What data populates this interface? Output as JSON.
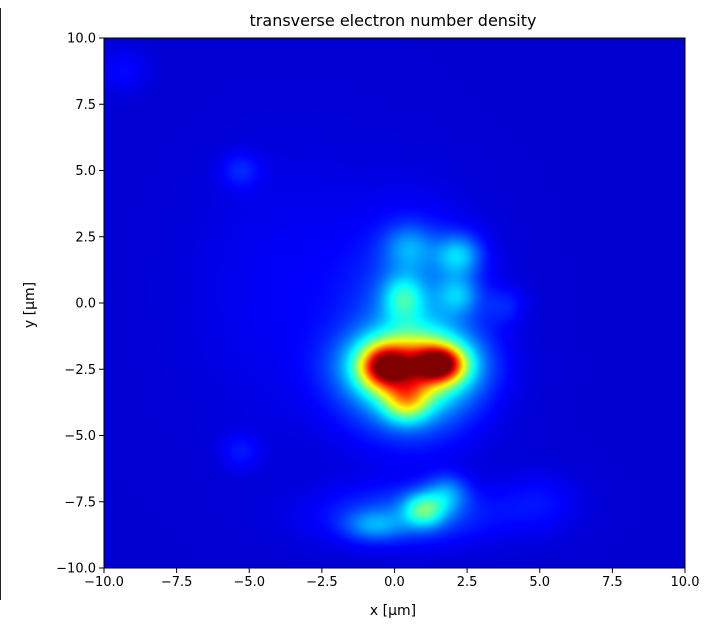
{
  "chart_data": {
    "type": "heatmap",
    "title": "transverse electron number density",
    "xlabel": "x [µm]",
    "ylabel": "y [µm]",
    "xlim": [
      -10.0,
      10.0
    ],
    "ylim": [
      -10.0,
      10.0
    ],
    "x_ticks": [
      -10.0,
      -7.5,
      -5.0,
      -2.5,
      0.0,
      2.5,
      5.0,
      7.5,
      10.0
    ],
    "y_ticks": [
      -10.0,
      -7.5,
      -5.0,
      -2.5,
      0.0,
      2.5,
      5.0,
      7.5,
      10.0
    ],
    "x_tick_labels": [
      "−10.0",
      "−7.5",
      "−5.0",
      "−2.5",
      "0.0",
      "2.5",
      "5.0",
      "7.5",
      "10.0"
    ],
    "y_tick_labels": [
      "−10.0",
      "−7.5",
      "−5.0",
      "−2.5",
      "0.0",
      "2.5",
      "5.0",
      "7.5",
      "10.0"
    ],
    "colormap": "jet",
    "grid": false,
    "colorbar": false,
    "background_level": 0.08,
    "features": [
      {
        "x": 1.6,
        "y": -2.3,
        "sx": 0.55,
        "sy": 0.45,
        "amp": 0.55
      },
      {
        "x": -0.4,
        "y": -2.4,
        "sx": 0.55,
        "sy": 0.55,
        "amp": 0.45
      },
      {
        "x": 0.6,
        "y": -2.3,
        "sx": 1.3,
        "sy": 0.8,
        "amp": 0.45
      },
      {
        "x": 0.4,
        "y": -3.7,
        "sx": 0.55,
        "sy": 0.55,
        "amp": 0.3
      },
      {
        "x": 0.5,
        "y": -3.0,
        "sx": 1.6,
        "sy": 1.3,
        "amp": 0.2
      },
      {
        "x": 0.3,
        "y": 0.2,
        "sx": 0.5,
        "sy": 0.6,
        "amp": 0.2
      },
      {
        "x": 2.2,
        "y": 1.8,
        "sx": 0.55,
        "sy": 0.55,
        "amp": 0.2
      },
      {
        "x": 2.2,
        "y": 0.3,
        "sx": 0.5,
        "sy": 0.5,
        "amp": 0.15
      },
      {
        "x": 0.5,
        "y": 2.1,
        "sx": 0.6,
        "sy": 0.6,
        "amp": 0.13
      },
      {
        "x": 0.8,
        "y": -0.8,
        "sx": 1.5,
        "sy": 2.5,
        "amp": 0.16
      },
      {
        "x": 1.0,
        "y": -7.8,
        "sx": 0.5,
        "sy": 0.45,
        "amp": 0.28
      },
      {
        "x": 1.8,
        "y": -7.2,
        "sx": 0.5,
        "sy": 0.5,
        "amp": 0.15
      },
      {
        "x": -0.7,
        "y": -8.4,
        "sx": 0.7,
        "sy": 0.4,
        "amp": 0.13
      },
      {
        "x": 0.5,
        "y": -8.0,
        "sx": 2.2,
        "sy": 0.8,
        "amp": 0.12
      },
      {
        "x": -5.3,
        "y": 5.0,
        "sx": 0.5,
        "sy": 0.5,
        "amp": 0.07
      },
      {
        "x": -5.3,
        "y": -5.6,
        "sx": 0.5,
        "sy": 0.5,
        "amp": 0.06
      },
      {
        "x": 3.8,
        "y": -0.1,
        "sx": 0.5,
        "sy": 0.5,
        "amp": 0.06
      },
      {
        "x": -9.3,
        "y": 8.8,
        "sx": 0.6,
        "sy": 0.6,
        "amp": 0.05
      },
      {
        "x": 5.0,
        "y": -7.5,
        "sx": 1.0,
        "sy": 0.8,
        "amp": 0.05
      },
      {
        "x": -3.5,
        "y": 0.5,
        "sx": 2.5,
        "sy": 3.5,
        "amp": 0.04
      }
    ]
  }
}
